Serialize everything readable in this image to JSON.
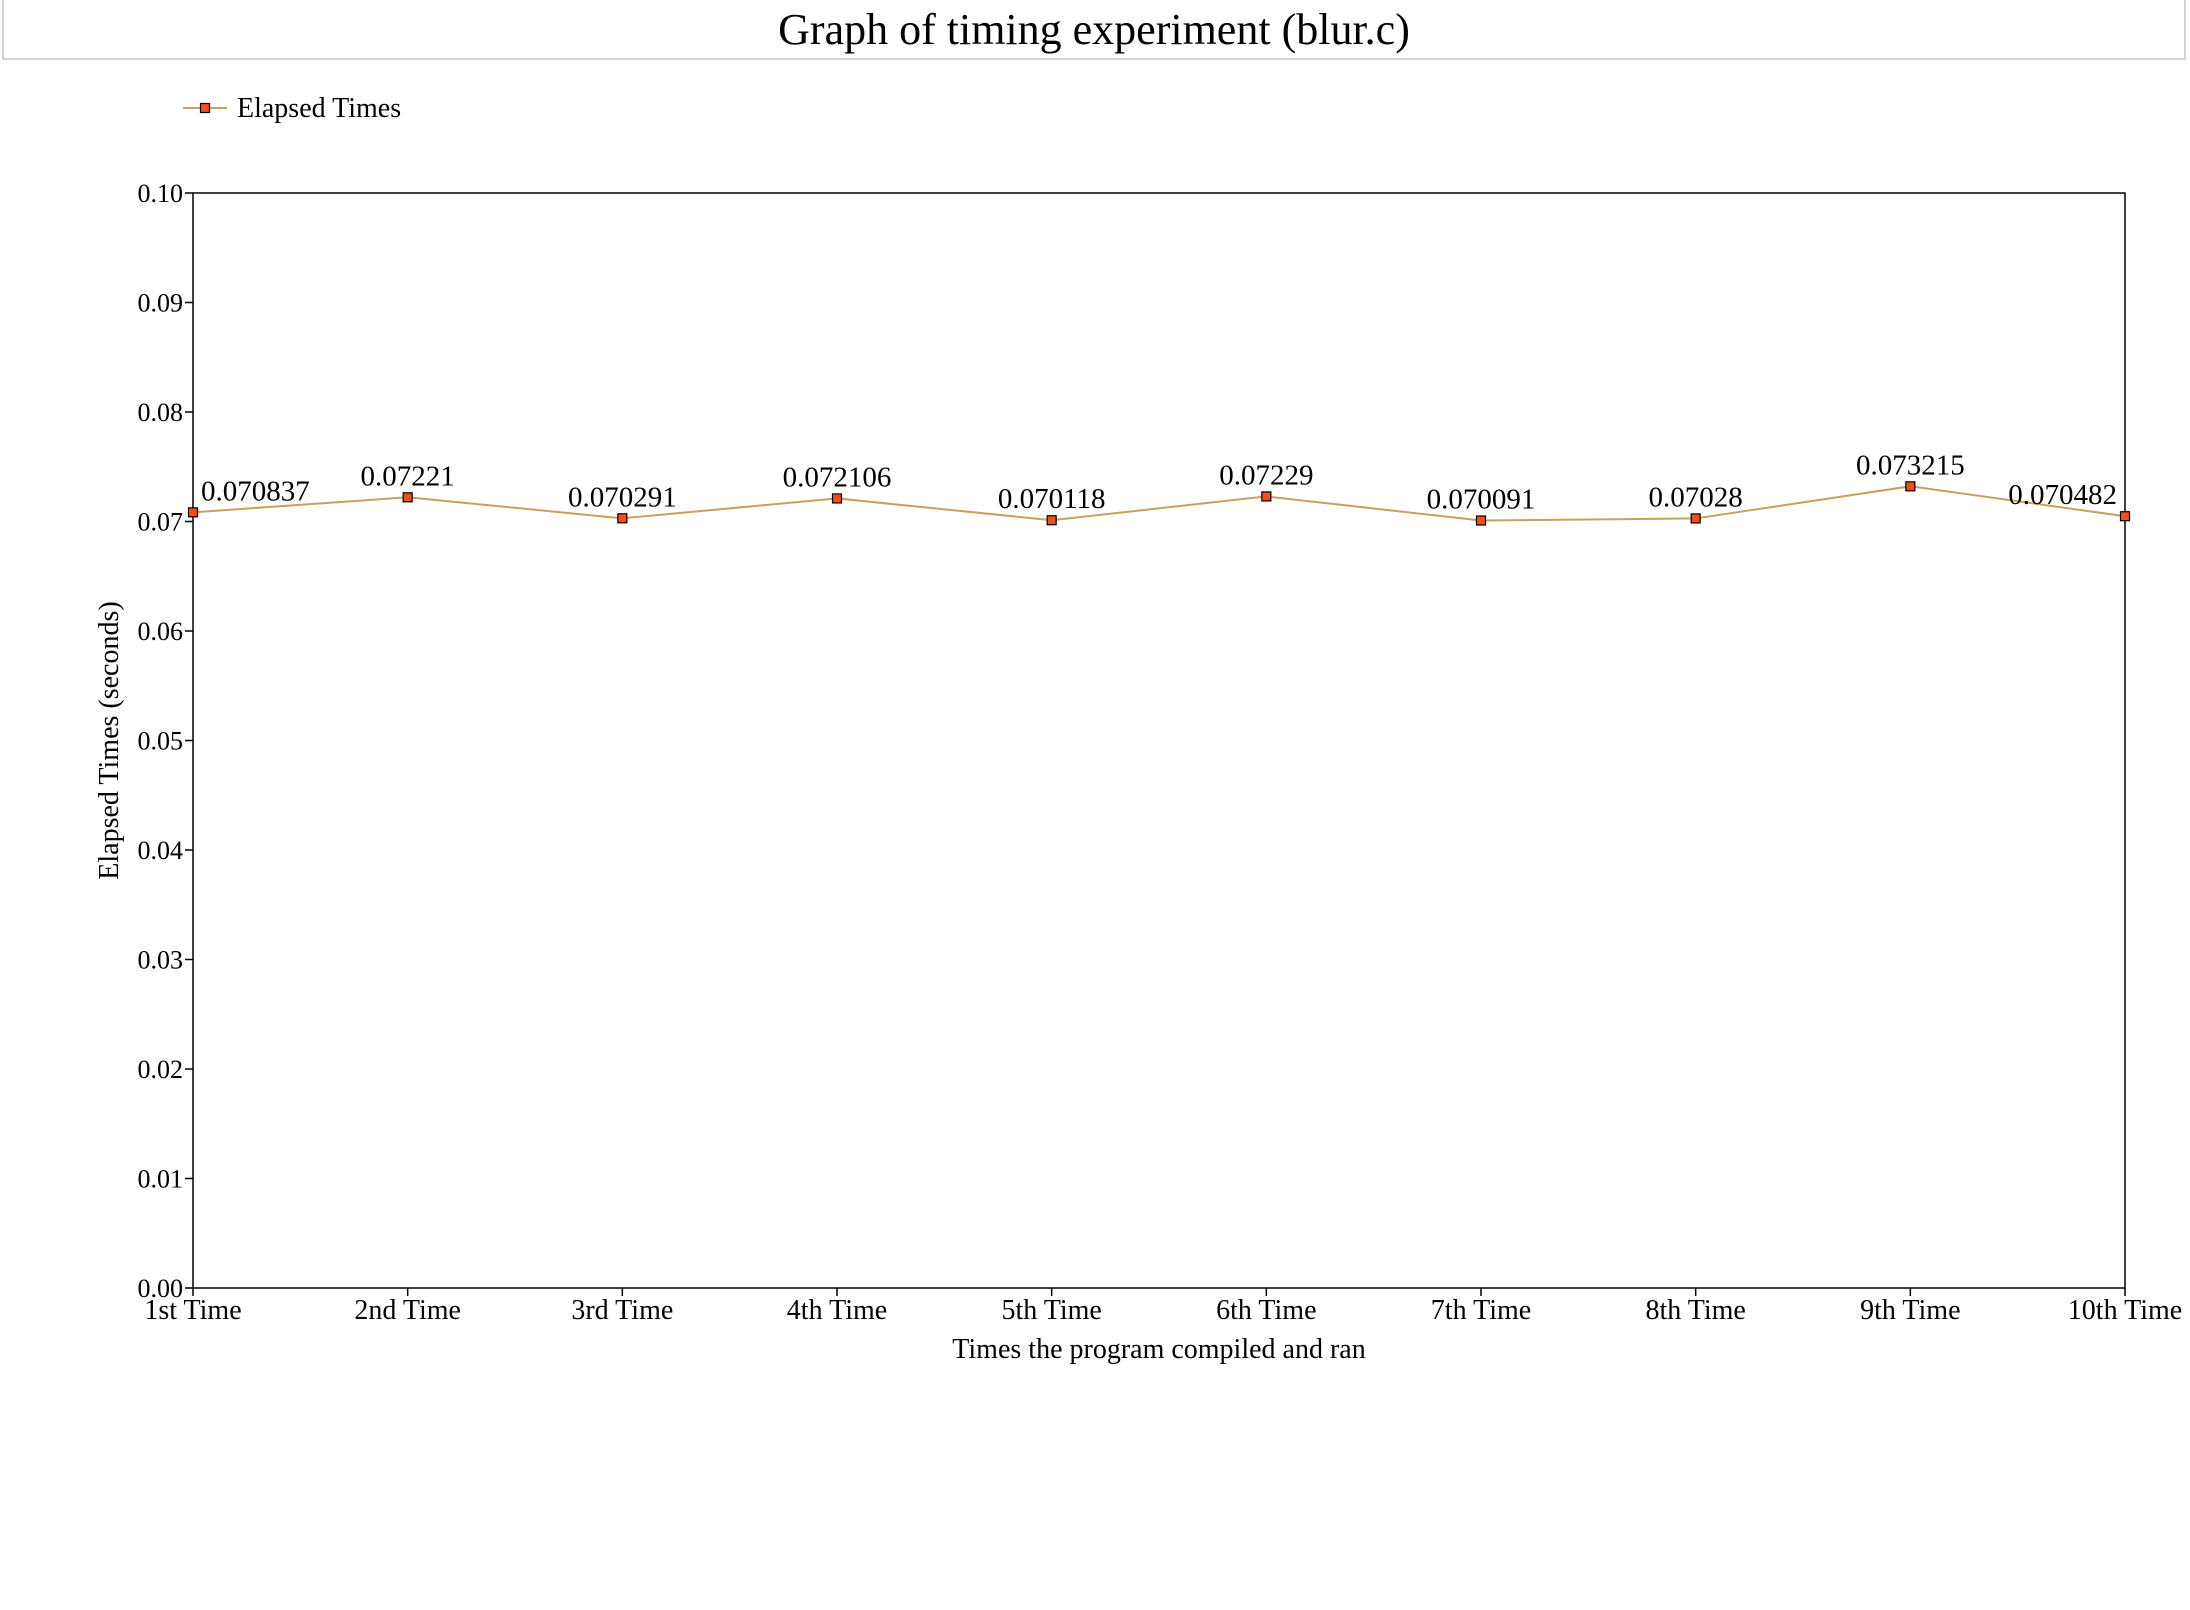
{
  "chart_data": {
    "type": "line",
    "title": "Graph of timing experiment (blur.c)",
    "xlabel": "Times the program compiled and ran",
    "ylabel": "Elapsed Times (seconds)",
    "categories": [
      "1st Time",
      "2nd Time",
      "3rd Time",
      "4th Time",
      "5th Time",
      "6th Time",
      "7th Time",
      "8th Time",
      "9th Time",
      "10th Time"
    ],
    "series": [
      {
        "name": "Elapsed Times",
        "values": [
          0.070837,
          0.07221,
          0.070291,
          0.072106,
          0.070118,
          0.07229,
          0.070091,
          0.07028,
          0.073215,
          0.070482
        ],
        "labels": [
          "0.070837",
          "0.07221",
          "0.070291",
          "0.072106",
          "0.070118",
          "0.07229",
          "0.070091",
          "0.07028",
          "0.073215",
          "0.070482"
        ]
      }
    ],
    "ylim": [
      0,
      0.1
    ],
    "yticks": [
      "0.00",
      "0.01",
      "0.02",
      "0.03",
      "0.04",
      "0.05",
      "0.06",
      "0.07",
      "0.08",
      "0.09",
      "0.10"
    ],
    "grid": false,
    "legend": "top-left",
    "line_color": "#c8a060",
    "marker_color": "#f05020",
    "marker_edge": "#000000"
  }
}
